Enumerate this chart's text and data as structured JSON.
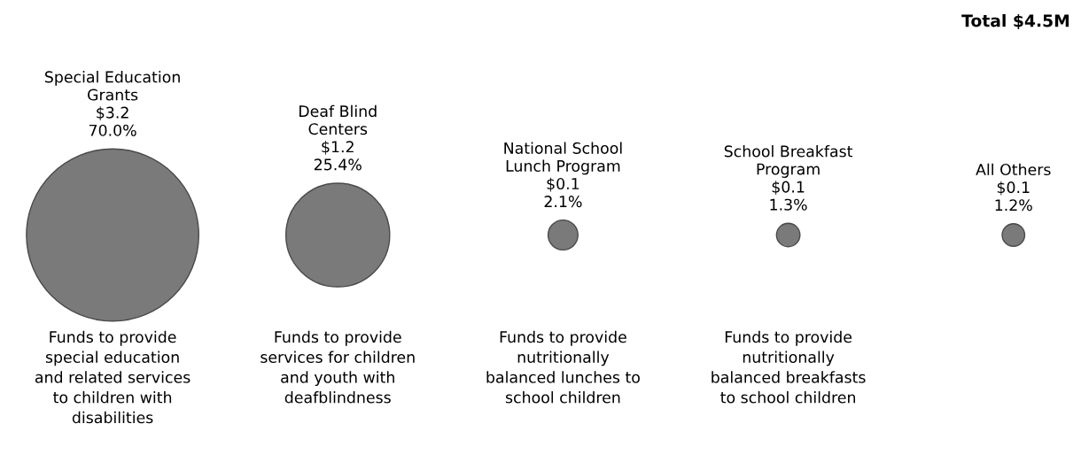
{
  "chart_data": {
    "type": "other",
    "title": "Total $4.5M",
    "categories": [
      "Special Education\nGrants",
      "Deaf Blind\nCenters",
      "National School\nLunch Program",
      "School Breakfast\nProgram",
      "All Others"
    ],
    "values": [
      70.0,
      25.4,
      2.1,
      1.3,
      1.2
    ],
    "value_labels": [
      "$3.2\n70.0%",
      "$1.2\n25.4%",
      "$0.1\n2.1%",
      "$0.1\n1.3%",
      "$0.1\n1.2%"
    ],
    "color": "#7a7a7a",
    "annotations": [
      "Funds to provide\nspecial education\nand related services\nto children with\ndisabilities",
      "Funds to provide\nservices for children\nand youth with\ndeafblindness",
      "Funds to provide\nnutritionally\nbalanced lunches to\nschool children",
      "Funds to provide\nnutritionally\nbalanced breakfasts\nto school children"
    ]
  }
}
